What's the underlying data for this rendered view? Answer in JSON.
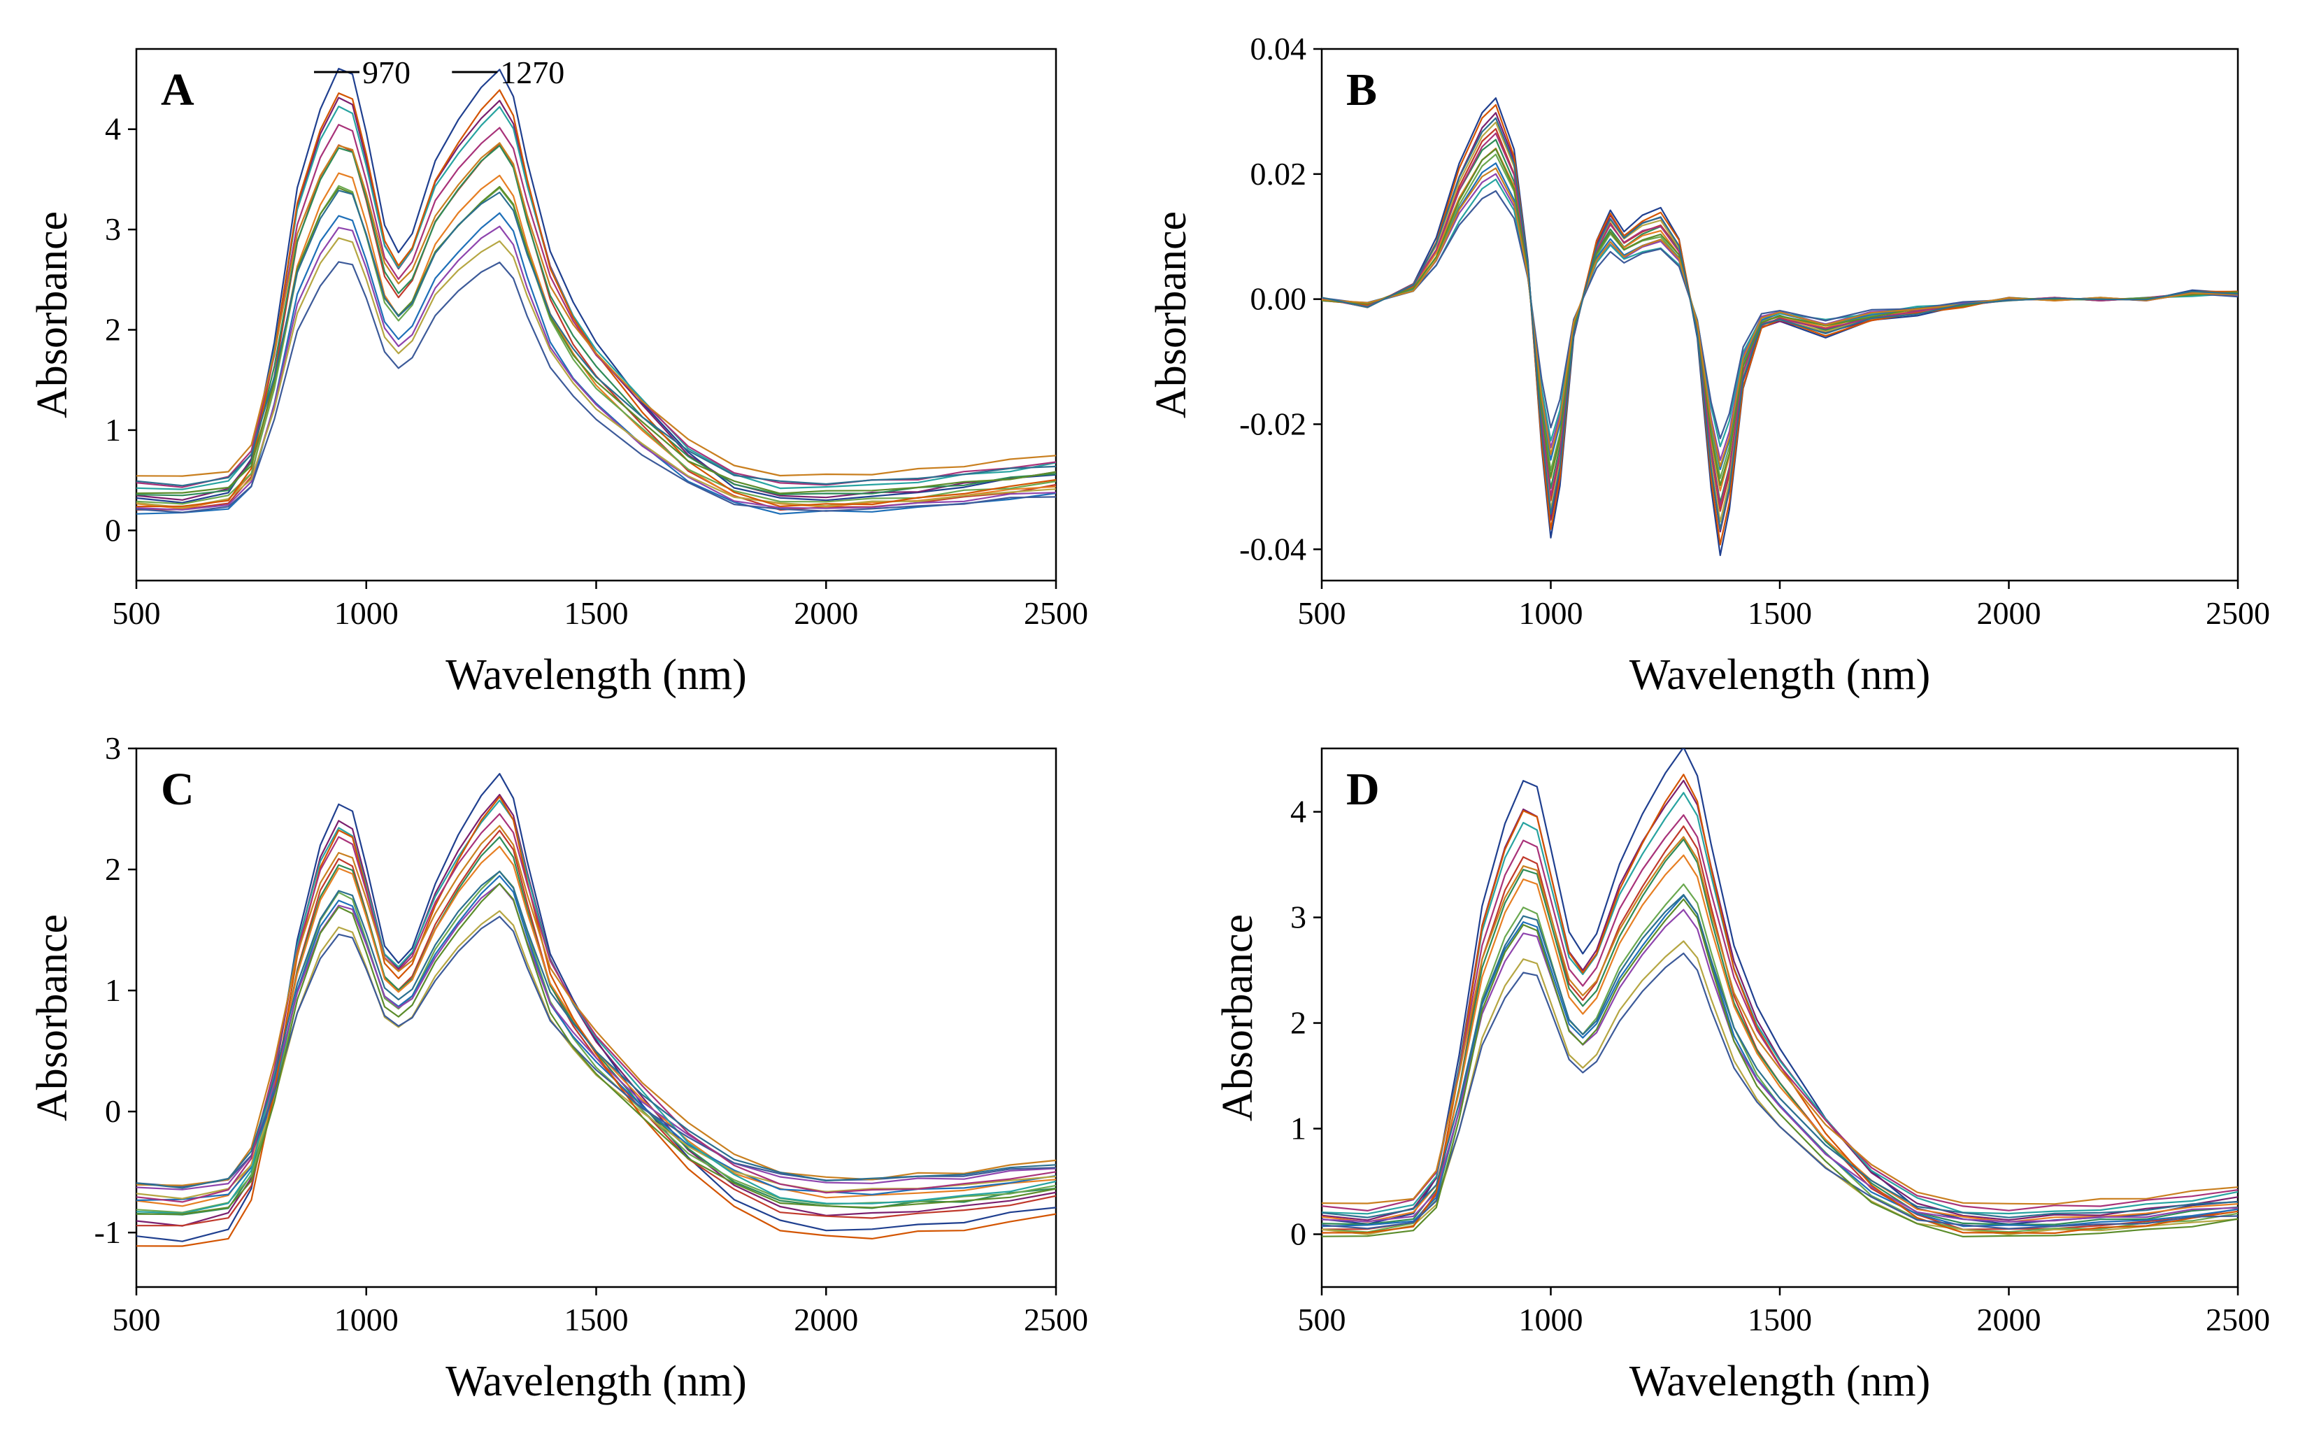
{
  "figure": {
    "series_count_note": "each panel shows many overlaid spectra; representative families drawn",
    "colors": [
      "#1f3f8f",
      "#7a1f6e",
      "#c0392b",
      "#2e8b57",
      "#e67e22",
      "#6aa84f",
      "#1e6fb8",
      "#8e44ad",
      "#b5a642",
      "#27a3a0",
      "#d35400",
      "#3c5a99",
      "#a83279",
      "#5b8c2a",
      "#c97f1f",
      "#2b6f8f"
    ]
  },
  "chart_data": [
    {
      "panel": "A",
      "type": "line",
      "title": "A",
      "xlabel": "Wavelength  (nm)",
      "ylabel": "Absorbance",
      "xlim": [
        500,
        2500
      ],
      "ylim": [
        -0.5,
        4.8
      ],
      "xticks": [
        500,
        1000,
        1500,
        2000,
        2500
      ],
      "yticks": [
        0,
        1,
        2,
        3,
        4
      ],
      "ytick_labels": [
        "0",
        "1",
        "2",
        "3",
        "4"
      ],
      "annotations": [
        {
          "text": "970",
          "x": 970,
          "y": 4.5
        },
        {
          "text": "1270",
          "x": 1270,
          "y": 4.5
        }
      ],
      "baseline_spectrum": [
        [
          500,
          0.2
        ],
        [
          600,
          0.18
        ],
        [
          700,
          0.25
        ],
        [
          750,
          0.5
        ],
        [
          800,
          1.4
        ],
        [
          850,
          2.6
        ],
        [
          900,
          3.2
        ],
        [
          940,
          3.5
        ],
        [
          970,
          3.45
        ],
        [
          1000,
          3.0
        ],
        [
          1040,
          2.3
        ],
        [
          1070,
          2.1
        ],
        [
          1100,
          2.25
        ],
        [
          1150,
          2.8
        ],
        [
          1200,
          3.1
        ],
        [
          1250,
          3.35
        ],
        [
          1290,
          3.5
        ],
        [
          1320,
          3.3
        ],
        [
          1350,
          2.8
        ],
        [
          1400,
          2.1
        ],
        [
          1450,
          1.7
        ],
        [
          1500,
          1.4
        ],
        [
          1600,
          0.95
        ],
        [
          1700,
          0.55
        ],
        [
          1800,
          0.3
        ],
        [
          1900,
          0.2
        ],
        [
          2000,
          0.2
        ],
        [
          2100,
          0.22
        ],
        [
          2200,
          0.25
        ],
        [
          2300,
          0.3
        ],
        [
          2400,
          0.35
        ],
        [
          2500,
          0.4
        ]
      ],
      "series_scale_offset": [
        [
          1.3,
          0.05
        ],
        [
          1.2,
          0.1
        ],
        [
          1.1,
          0.0
        ],
        [
          1.05,
          0.15
        ],
        [
          1.0,
          0.05
        ],
        [
          0.95,
          0.1
        ],
        [
          0.9,
          0.0
        ],
        [
          0.85,
          0.05
        ],
        [
          0.8,
          0.1
        ],
        [
          1.15,
          0.2
        ],
        [
          1.25,
          0.0
        ],
        [
          0.75,
          0.05
        ],
        [
          1.08,
          0.25
        ],
        [
          0.92,
          0.2
        ],
        [
          1.0,
          0.35
        ],
        [
          0.88,
          0.3
        ]
      ]
    },
    {
      "panel": "B",
      "type": "line",
      "title": "B",
      "xlabel": "Wavelength  (nm)",
      "ylabel": "Absorbance",
      "xlim": [
        500,
        2500
      ],
      "ylim": [
        -0.045,
        0.04
      ],
      "xticks": [
        500,
        1000,
        1500,
        2000,
        2500
      ],
      "yticks": [
        -0.04,
        -0.02,
        0.0,
        0.02,
        0.04
      ],
      "ytick_labels": [
        "-0.04",
        "-0.02",
        "0.00",
        "0.02",
        "0.04"
      ],
      "baseline_spectrum": [
        [
          500,
          0.0
        ],
        [
          600,
          -0.001
        ],
        [
          700,
          0.002
        ],
        [
          750,
          0.008
        ],
        [
          800,
          0.018
        ],
        [
          850,
          0.025
        ],
        [
          880,
          0.027
        ],
        [
          920,
          0.02
        ],
        [
          950,
          0.005
        ],
        [
          980,
          -0.02
        ],
        [
          1000,
          -0.032
        ],
        [
          1020,
          -0.025
        ],
        [
          1050,
          -0.005
        ],
        [
          1100,
          0.008
        ],
        [
          1130,
          0.012
        ],
        [
          1160,
          0.009
        ],
        [
          1200,
          0.011
        ],
        [
          1240,
          0.012
        ],
        [
          1280,
          0.008
        ],
        [
          1320,
          -0.005
        ],
        [
          1350,
          -0.025
        ],
        [
          1370,
          -0.034
        ],
        [
          1390,
          -0.028
        ],
        [
          1420,
          -0.012
        ],
        [
          1460,
          -0.004
        ],
        [
          1500,
          -0.003
        ],
        [
          1600,
          -0.005
        ],
        [
          1700,
          -0.003
        ],
        [
          1800,
          -0.002
        ],
        [
          1900,
          -0.001
        ],
        [
          2000,
          0.0
        ],
        [
          2100,
          0.0
        ],
        [
          2200,
          0.0
        ],
        [
          2300,
          0.0
        ],
        [
          2400,
          0.001
        ],
        [
          2500,
          0.001
        ]
      ],
      "series_scale_offset": [
        [
          1.2,
          0.0
        ],
        [
          1.1,
          0.0
        ],
        [
          1.0,
          0.0
        ],
        [
          0.95,
          0.0
        ],
        [
          0.9,
          0.0
        ],
        [
          0.85,
          0.0
        ],
        [
          0.8,
          0.0
        ],
        [
          0.75,
          0.0
        ],
        [
          1.05,
          0.0
        ],
        [
          0.7,
          0.0
        ],
        [
          1.15,
          0.0
        ],
        [
          0.65,
          0.0
        ],
        [
          0.98,
          0.0
        ],
        [
          0.88,
          0.0
        ],
        [
          0.78,
          0.0
        ],
        [
          1.08,
          0.0
        ]
      ]
    },
    {
      "panel": "C",
      "type": "line",
      "title": "C",
      "xlabel": "Wavelength  (nm)",
      "ylabel": "Absorbance",
      "xlim": [
        500,
        2500
      ],
      "ylim": [
        -1.45,
        3.0
      ],
      "xticks": [
        500,
        1000,
        1500,
        2000,
        2500
      ],
      "yticks": [
        -1,
        0,
        1,
        2,
        3
      ],
      "ytick_labels": [
        "-1",
        "0",
        "1",
        "2",
        "3"
      ],
      "baseline_spectrum": [
        [
          500,
          -0.8
        ],
        [
          600,
          -0.82
        ],
        [
          700,
          -0.75
        ],
        [
          750,
          -0.5
        ],
        [
          800,
          0.2
        ],
        [
          850,
          1.1
        ],
        [
          900,
          1.7
        ],
        [
          940,
          1.95
        ],
        [
          970,
          1.9
        ],
        [
          1000,
          1.55
        ],
        [
          1040,
          1.05
        ],
        [
          1070,
          0.95
        ],
        [
          1100,
          1.05
        ],
        [
          1150,
          1.45
        ],
        [
          1200,
          1.75
        ],
        [
          1250,
          2.0
        ],
        [
          1290,
          2.15
        ],
        [
          1320,
          2.0
        ],
        [
          1350,
          1.6
        ],
        [
          1400,
          1.0
        ],
        [
          1450,
          0.7
        ],
        [
          1500,
          0.45
        ],
        [
          1600,
          0.05
        ],
        [
          1700,
          -0.3
        ],
        [
          1800,
          -0.55
        ],
        [
          1900,
          -0.7
        ],
        [
          2000,
          -0.75
        ],
        [
          2100,
          -0.75
        ],
        [
          2200,
          -0.72
        ],
        [
          2300,
          -0.7
        ],
        [
          2400,
          -0.65
        ],
        [
          2500,
          -0.6
        ]
      ],
      "series_scale_offset": [
        [
          1.3,
          0.0
        ],
        [
          1.2,
          0.05
        ],
        [
          1.1,
          -0.05
        ],
        [
          1.05,
          0.0
        ],
        [
          1.0,
          0.05
        ],
        [
          0.95,
          -0.05
        ],
        [
          0.9,
          0.0
        ],
        [
          0.85,
          0.05
        ],
        [
          0.8,
          -0.05
        ],
        [
          1.15,
          0.1
        ],
        [
          1.25,
          -0.1
        ],
        [
          0.75,
          0.0
        ],
        [
          1.08,
          0.15
        ],
        [
          0.92,
          -0.1
        ],
        [
          1.0,
          0.2
        ],
        [
          0.88,
          0.1
        ]
      ]
    },
    {
      "panel": "D",
      "type": "line",
      "title": "D",
      "xlabel": "Wavelength  (nm)",
      "ylabel": "Absorbance",
      "xlim": [
        500,
        2500
      ],
      "ylim": [
        -0.5,
        4.6
      ],
      "xticks": [
        500,
        1000,
        1500,
        2000,
        2500
      ],
      "yticks": [
        0,
        1,
        2,
        3,
        4
      ],
      "ytick_labels": [
        "0",
        "1",
        "2",
        "3",
        "4"
      ],
      "baseline_spectrum": [
        [
          500,
          0.1
        ],
        [
          600,
          0.08
        ],
        [
          700,
          0.15
        ],
        [
          750,
          0.4
        ],
        [
          800,
          1.3
        ],
        [
          850,
          2.4
        ],
        [
          900,
          3.0
        ],
        [
          940,
          3.3
        ],
        [
          970,
          3.25
        ],
        [
          1000,
          2.8
        ],
        [
          1040,
          2.2
        ],
        [
          1070,
          2.05
        ],
        [
          1100,
          2.2
        ],
        [
          1150,
          2.7
        ],
        [
          1200,
          3.05
        ],
        [
          1250,
          3.35
        ],
        [
          1290,
          3.55
        ],
        [
          1320,
          3.35
        ],
        [
          1350,
          2.85
        ],
        [
          1400,
          2.1
        ],
        [
          1450,
          1.65
        ],
        [
          1500,
          1.35
        ],
        [
          1600,
          0.85
        ],
        [
          1700,
          0.45
        ],
        [
          1800,
          0.2
        ],
        [
          1900,
          0.1
        ],
        [
          2000,
          0.08
        ],
        [
          2100,
          0.1
        ],
        [
          2200,
          0.12
        ],
        [
          2300,
          0.15
        ],
        [
          2400,
          0.2
        ],
        [
          2500,
          0.25
        ]
      ],
      "series_scale_offset": [
        [
          1.3,
          0.0
        ],
        [
          1.2,
          0.05
        ],
        [
          1.1,
          -0.05
        ],
        [
          1.05,
          0.0
        ],
        [
          1.0,
          0.05
        ],
        [
          0.95,
          -0.05
        ],
        [
          0.9,
          0.0
        ],
        [
          0.85,
          0.05
        ],
        [
          0.8,
          -0.05
        ],
        [
          1.15,
          0.1
        ],
        [
          1.25,
          -0.1
        ],
        [
          0.75,
          0.0
        ],
        [
          1.08,
          0.15
        ],
        [
          0.92,
          -0.1
        ],
        [
          1.0,
          0.2
        ],
        [
          0.88,
          0.1
        ]
      ]
    }
  ]
}
